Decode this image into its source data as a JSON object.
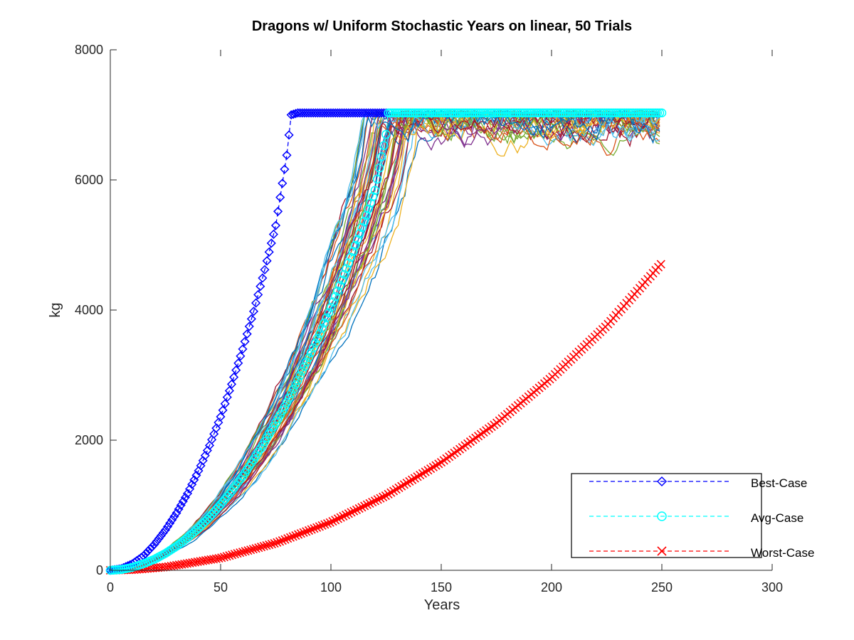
{
  "chart_data": {
    "type": "line",
    "title": "Dragons w/ Uniform Stochastic Years on linear, 50 Trials",
    "xlabel": "Years",
    "ylabel": "kg",
    "xlim": [
      0,
      300
    ],
    "ylim": [
      0,
      8000
    ],
    "xticks": [
      "0",
      "50",
      "100",
      "150",
      "200",
      "250",
      "300"
    ],
    "yticks": [
      "0",
      "2000",
      "4000",
      "6000",
      "8000"
    ],
    "grid": false,
    "legend_position": "bottom-right",
    "trial_count": 50,
    "trials_color_cycle": [
      "#0072bd",
      "#d95319",
      "#edb120",
      "#7e2f8e",
      "#77ac30",
      "#4dbeee",
      "#a2142f"
    ],
    "series": [
      {
        "name": "Best-Case",
        "color": "#0000ff",
        "marker": "diamond",
        "line_style": "dashed",
        "x": [
          0,
          5,
          10,
          15,
          20,
          25,
          30,
          35,
          40,
          45,
          50,
          55,
          60,
          65,
          70,
          75,
          80,
          82,
          85,
          100,
          125
        ],
        "y": [
          0,
          25,
          100,
          220,
          400,
          620,
          880,
          1180,
          1530,
          1920,
          2360,
          2860,
          3400,
          3980,
          4620,
          5300,
          6380,
          7000,
          7030,
          7030,
          7030
        ]
      },
      {
        "name": "Avg-Case",
        "color": "#00ffff",
        "marker": "circle",
        "line_style": "dashed",
        "x": [
          0,
          5,
          10,
          15,
          20,
          25,
          30,
          35,
          40,
          45,
          50,
          55,
          60,
          65,
          70,
          75,
          80,
          85,
          90,
          95,
          100,
          105,
          110,
          115,
          120,
          125,
          126,
          150,
          175,
          200,
          225,
          250
        ],
        "y": [
          0,
          12,
          45,
          100,
          170,
          260,
          370,
          500,
          650,
          820,
          1010,
          1220,
          1450,
          1700,
          1980,
          2270,
          2580,
          2920,
          3270,
          3640,
          4040,
          4460,
          4900,
          5360,
          5840,
          6700,
          7030,
          7030,
          7030,
          7030,
          7030,
          7030
        ]
      },
      {
        "name": "Worst-Case",
        "color": "#ff0000",
        "marker": "x",
        "line_style": "dashed",
        "x": [
          0,
          10,
          25,
          50,
          75,
          100,
          125,
          150,
          175,
          200,
          225,
          250
        ],
        "y": [
          0,
          8,
          50,
          190,
          420,
          740,
          1150,
          1660,
          2260,
          2960,
          3760,
          4720
        ]
      }
    ]
  }
}
